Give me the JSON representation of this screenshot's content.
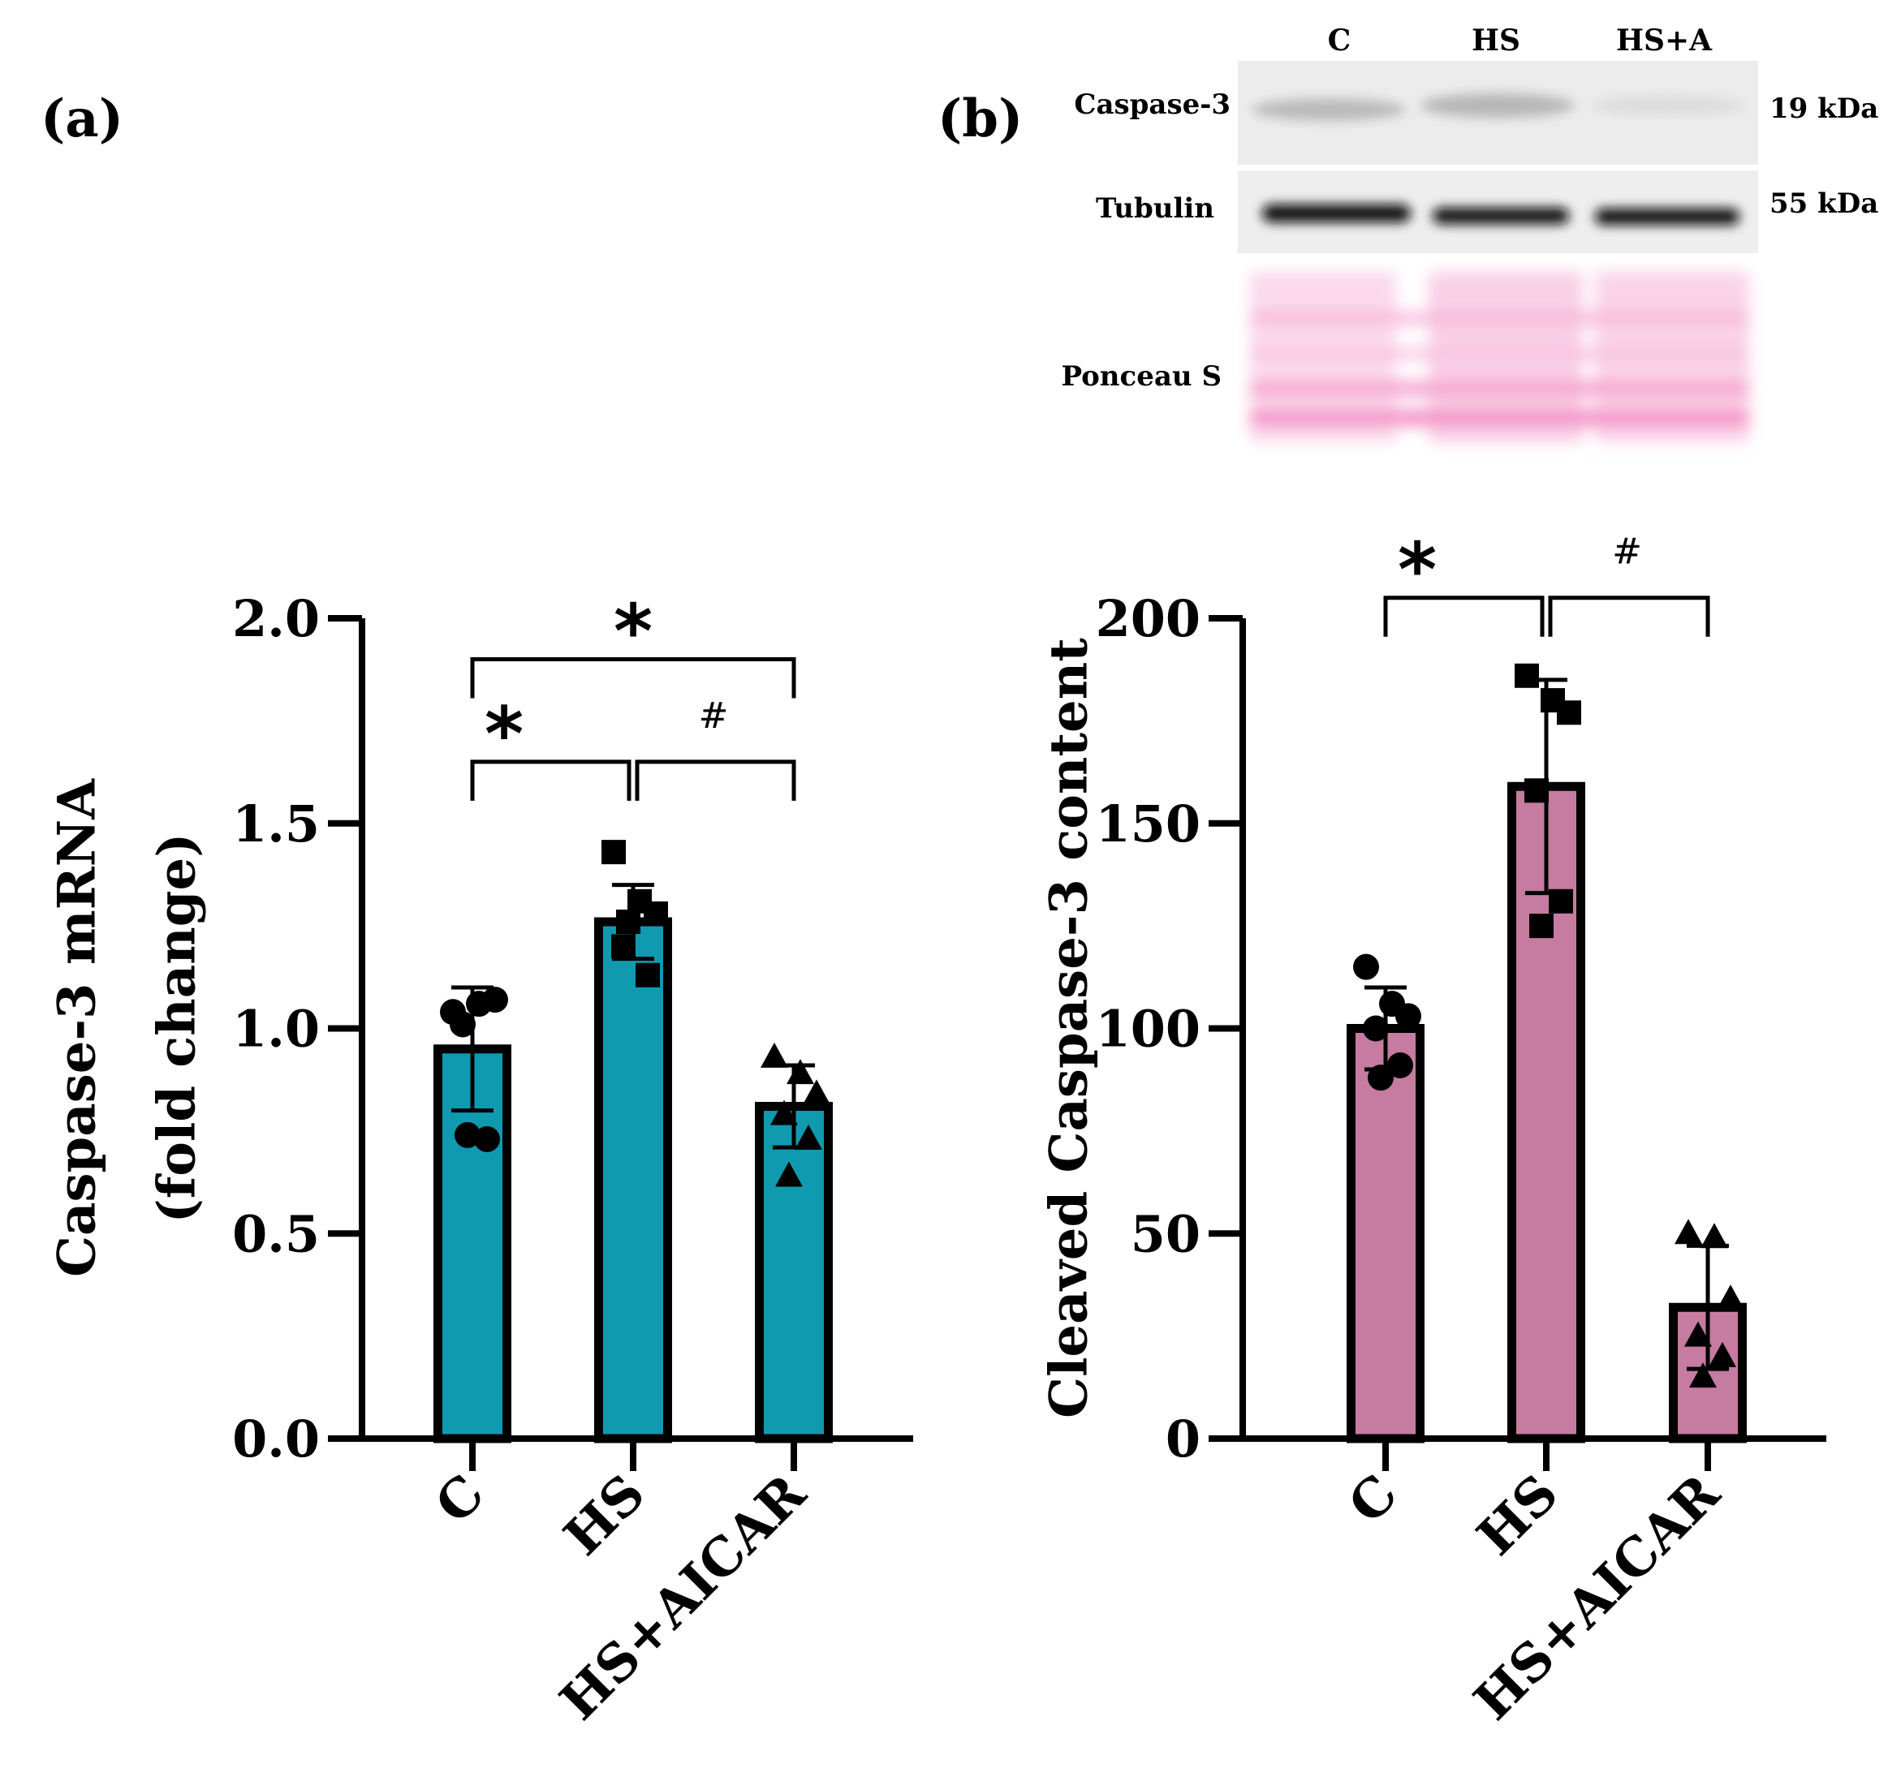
{
  "panels": {
    "a_label": "(a)",
    "b_label": "(b)"
  },
  "blot": {
    "lanes": [
      "C",
      "HS",
      "HS+A"
    ],
    "rows": [
      {
        "label": "Caspase-3",
        "mw": "19 kDa"
      },
      {
        "label": "Tubulin",
        "mw": "55 kDa"
      },
      {
        "label": "Ponceau S",
        "mw": ""
      }
    ],
    "band_intensity": {
      "caspase3": [
        0.35,
        0.45,
        0.12
      ],
      "tubulin": [
        1.0,
        0.95,
        0.95
      ]
    },
    "colors": {
      "stain": "#f5a3cf",
      "band": "#0d0d0d",
      "background": "#f2f2f2"
    }
  },
  "chart_data": [
    {
      "type": "bar",
      "id": "a",
      "title": "",
      "categories": [
        "C",
        "HS",
        "HS+AICAR"
      ],
      "values": [
        0.95,
        1.26,
        0.81
      ],
      "error_sd": [
        0.15,
        0.09,
        0.1
      ],
      "points": [
        [
          1.04,
          1.06,
          1.07,
          1.01,
          0.73,
          0.74
        ],
        [
          1.43,
          1.31,
          1.28,
          1.2,
          1.13,
          1.26
        ],
        [
          0.93,
          0.89,
          0.84,
          0.79,
          0.73,
          0.64
        ]
      ],
      "markers": [
        "circle",
        "square",
        "triangle"
      ],
      "ylabel": "Caspase-3 mRNA",
      "ylabel2": "(fold change)",
      "ylim": [
        0,
        2
      ],
      "yticks": [
        "0.0",
        "0.5",
        "1.0",
        "1.5",
        "2.0"
      ],
      "yticks_values": [
        0,
        0.5,
        1.0,
        1.5,
        2.0
      ],
      "bar_color": "#0f9ab0",
      "significance": [
        {
          "from": 0,
          "to": 2,
          "symbol": "*",
          "level": 1.9
        },
        {
          "from": 0,
          "to": 1,
          "symbol": "*",
          "level": 1.65
        },
        {
          "from": 1,
          "to": 2,
          "symbol": "#",
          "level": 1.65
        }
      ]
    },
    {
      "type": "bar",
      "id": "b",
      "title": "",
      "categories": [
        "C",
        "HS",
        "HS+AICAR"
      ],
      "values": [
        100,
        159,
        32
      ],
      "error_sd": [
        10,
        26,
        15
      ],
      "points": [
        [
          115,
          106,
          103,
          100,
          91,
          88
        ],
        [
          186,
          180,
          177,
          158,
          131,
          125
        ],
        [
          50,
          49,
          34,
          25,
          20,
          15
        ]
      ],
      "markers": [
        "circle",
        "square",
        "triangle"
      ],
      "ylabel": "Cleaved Caspase-3 content",
      "ylim": [
        0,
        200
      ],
      "yticks": [
        "0",
        "50",
        "100",
        "150",
        "200"
      ],
      "yticks_values": [
        0,
        50,
        100,
        150,
        200
      ],
      "bar_color": "#c67ba1",
      "significance": [
        {
          "from": 0,
          "to": 1,
          "symbol": "*",
          "level": 205
        },
        {
          "from": 1,
          "to": 2,
          "symbol": "#",
          "level": 205
        }
      ]
    }
  ]
}
